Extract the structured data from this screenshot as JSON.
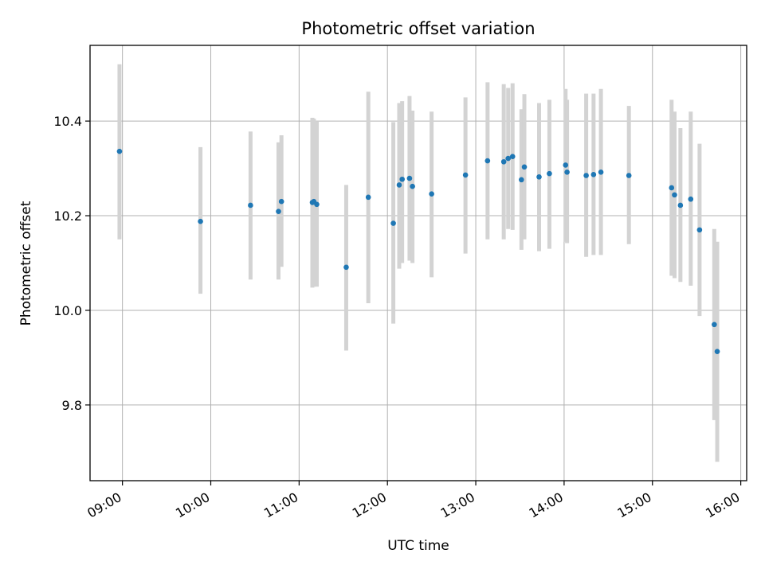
{
  "chart_data": {
    "type": "scatter",
    "title": "Photometric offset variation",
    "xlabel": "UTC time",
    "ylabel": "Photometric offset",
    "x_unit": "hours UTC",
    "xlim": [
      "08:38",
      "16:04"
    ],
    "ylim": [
      9.64,
      10.56
    ],
    "xticks": [
      "09:00",
      "10:00",
      "11:00",
      "12:00",
      "13:00",
      "14:00",
      "15:00",
      "16:00"
    ],
    "yticks": [
      "9.8",
      "10.0",
      "10.2",
      "10.4"
    ],
    "grid": true,
    "legend": "none",
    "colors": {
      "point": "#1f77b4",
      "errorbar": "#d3d3d3",
      "grid": "#b0b0b0"
    },
    "points": [
      {
        "x": "08:58",
        "y": 10.336,
        "lo": 10.15,
        "hi": 10.52
      },
      {
        "x": "09:53",
        "y": 10.188,
        "lo": 10.035,
        "hi": 10.345
      },
      {
        "x": "10:27",
        "y": 10.222,
        "lo": 10.065,
        "hi": 10.378
      },
      {
        "x": "10:46",
        "y": 10.209,
        "lo": 10.065,
        "hi": 10.355
      },
      {
        "x": "10:48",
        "y": 10.23,
        "lo": 10.092,
        "hi": 10.37
      },
      {
        "x": "11:09",
        "y": 10.228,
        "lo": 10.048,
        "hi": 10.407
      },
      {
        "x": "11:10",
        "y": 10.23,
        "lo": 10.05,
        "hi": 10.405
      },
      {
        "x": "11:12",
        "y": 10.224,
        "lo": 10.05,
        "hi": 10.4
      },
      {
        "x": "11:32",
        "y": 10.091,
        "lo": 9.915,
        "hi": 10.265
      },
      {
        "x": "11:47",
        "y": 10.239,
        "lo": 10.015,
        "hi": 10.462
      },
      {
        "x": "12:04",
        "y": 10.184,
        "lo": 9.972,
        "hi": 10.398
      },
      {
        "x": "12:08",
        "y": 10.265,
        "lo": 10.088,
        "hi": 10.438
      },
      {
        "x": "12:10",
        "y": 10.277,
        "lo": 10.1,
        "hi": 10.442
      },
      {
        "x": "12:15",
        "y": 10.279,
        "lo": 10.105,
        "hi": 10.453
      },
      {
        "x": "12:17",
        "y": 10.262,
        "lo": 10.1,
        "hi": 10.422
      },
      {
        "x": "12:30",
        "y": 10.246,
        "lo": 10.07,
        "hi": 10.42
      },
      {
        "x": "12:53",
        "y": 10.286,
        "lo": 10.12,
        "hi": 10.45
      },
      {
        "x": "13:08",
        "y": 10.316,
        "lo": 10.15,
        "hi": 10.482
      },
      {
        "x": "13:19",
        "y": 10.314,
        "lo": 10.15,
        "hi": 10.478
      },
      {
        "x": "13:22",
        "y": 10.321,
        "lo": 10.172,
        "hi": 10.47
      },
      {
        "x": "13:25",
        "y": 10.325,
        "lo": 10.17,
        "hi": 10.48
      },
      {
        "x": "13:31",
        "y": 10.276,
        "lo": 10.128,
        "hi": 10.425
      },
      {
        "x": "13:33",
        "y": 10.303,
        "lo": 10.15,
        "hi": 10.457
      },
      {
        "x": "13:43",
        "y": 10.282,
        "lo": 10.125,
        "hi": 10.438
      },
      {
        "x": "13:50",
        "y": 10.289,
        "lo": 10.13,
        "hi": 10.445
      },
      {
        "x": "14:01",
        "y": 10.307,
        "lo": 10.145,
        "hi": 10.468
      },
      {
        "x": "14:02",
        "y": 10.292,
        "lo": 10.142,
        "hi": 10.445
      },
      {
        "x": "14:15",
        "y": 10.285,
        "lo": 10.113,
        "hi": 10.458
      },
      {
        "x": "14:20",
        "y": 10.287,
        "lo": 10.117,
        "hi": 10.458
      },
      {
        "x": "14:25",
        "y": 10.292,
        "lo": 10.117,
        "hi": 10.468
      },
      {
        "x": "14:44",
        "y": 10.285,
        "lo": 10.14,
        "hi": 10.432
      },
      {
        "x": "15:13",
        "y": 10.259,
        "lo": 10.073,
        "hi": 10.445
      },
      {
        "x": "15:15",
        "y": 10.244,
        "lo": 10.068,
        "hi": 10.42
      },
      {
        "x": "15:19",
        "y": 10.222,
        "lo": 10.06,
        "hi": 10.385
      },
      {
        "x": "15:26",
        "y": 10.235,
        "lo": 10.052,
        "hi": 10.42
      },
      {
        "x": "15:32",
        "y": 10.17,
        "lo": 9.988,
        "hi": 10.352
      },
      {
        "x": "15:42",
        "y": 9.97,
        "lo": 9.768,
        "hi": 10.172
      },
      {
        "x": "15:44",
        "y": 9.913,
        "lo": 9.68,
        "hi": 10.145
      }
    ]
  }
}
